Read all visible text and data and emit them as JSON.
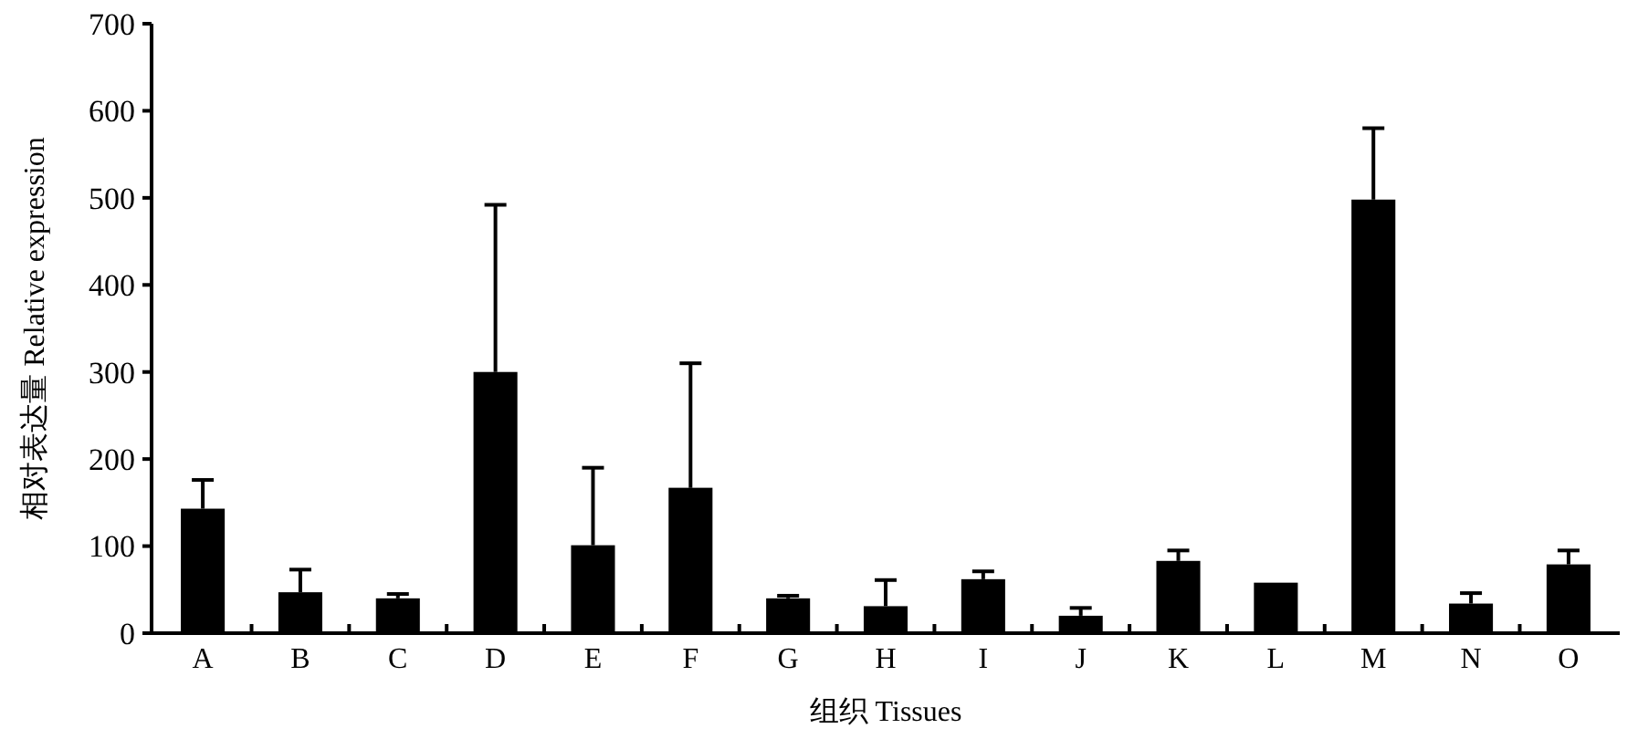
{
  "chart_data": {
    "type": "bar",
    "xlabel": "组织 Tissues",
    "ylabel": "相对表达量 Relative expression",
    "categories": [
      "A",
      "B",
      "C",
      "D",
      "E",
      "F",
      "G",
      "H",
      "I",
      "J",
      "K",
      "L",
      "M",
      "N",
      "O"
    ],
    "values": [
      143,
      47,
      40,
      300,
      101,
      167,
      40,
      31,
      62,
      20,
      83,
      58,
      498,
      34,
      79
    ],
    "errors": [
      [
        143,
        176
      ],
      [
        47,
        73
      ],
      [
        40,
        45
      ],
      [
        300,
        492
      ],
      [
        101,
        190
      ],
      [
        167,
        310
      ],
      [
        40,
        43
      ],
      [
        31,
        61
      ],
      [
        62,
        71
      ],
      [
        20,
        29
      ],
      [
        83,
        95
      ],
      null,
      [
        498,
        580
      ],
      [
        34,
        46
      ],
      [
        79,
        95
      ]
    ],
    "color": "#000000",
    "ylim": [
      0,
      700
    ],
    "yticks": [
      0,
      100,
      200,
      300,
      400,
      500,
      600,
      700
    ],
    "grid": false
  }
}
